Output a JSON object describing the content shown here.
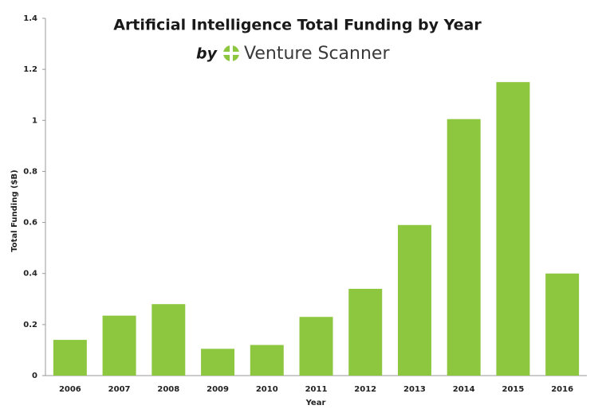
{
  "chart_data": {
    "type": "bar",
    "title": "Artificial Intelligence Total Funding by Year",
    "subtitle_by": "by",
    "subtitle_brand": "Venture Scanner",
    "x_label": "Year",
    "y_label": "Total Funding ($B)",
    "categories": [
      "2006",
      "2007",
      "2008",
      "2009",
      "2010",
      "2011",
      "2012",
      "2013",
      "2014",
      "2015",
      "2016"
    ],
    "values": [
      0.14,
      0.235,
      0.28,
      0.105,
      0.12,
      0.23,
      0.34,
      0.59,
      1.005,
      1.15,
      0.4
    ],
    "color": "#8dc63f",
    "ylim": [
      0,
      1.4
    ],
    "yticks": [
      0,
      0.2,
      0.4,
      0.6,
      0.8,
      1,
      1.2,
      1.4
    ],
    "grid": false
  }
}
